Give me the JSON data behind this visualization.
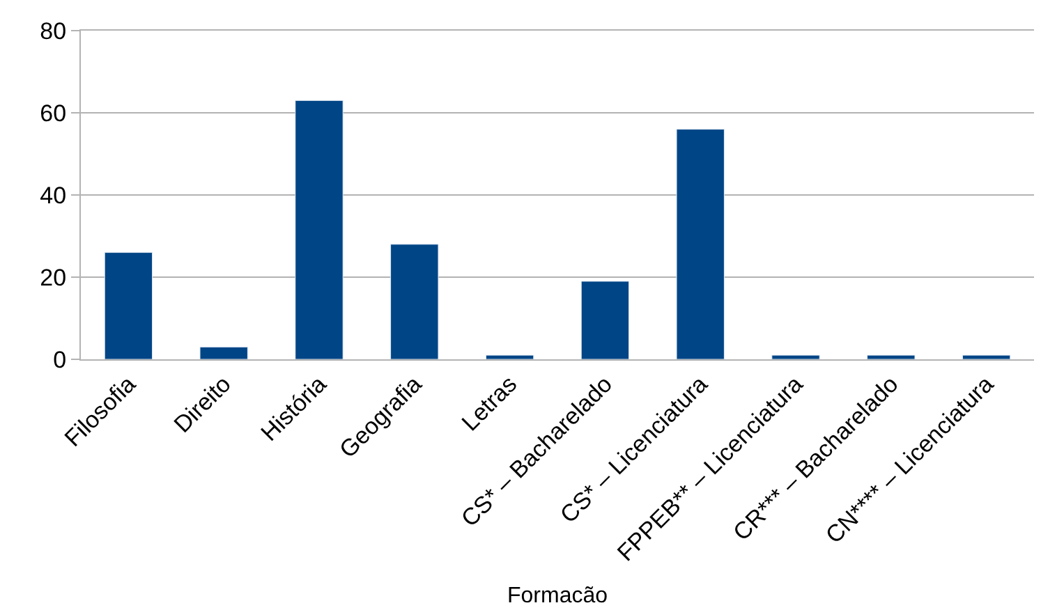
{
  "chart_data": {
    "type": "bar",
    "xlabel": "Formacão",
    "categories": [
      "Filosofia",
      "Direito",
      "História",
      "Geografia",
      "Letras",
      "CS* – Bacharelado",
      "CS* – Licenciatura",
      "FPPEB** – Licenciatura",
      "CR*** – Bacharelado",
      "CN**** – Licenciatura"
    ],
    "values": [
      26,
      3,
      63,
      28,
      1,
      19,
      56,
      1,
      1,
      1
    ],
    "color": "#004586",
    "ylim": [
      0,
      80
    ],
    "yticks": [
      0,
      20,
      40,
      60,
      80
    ],
    "grid": "y"
  }
}
